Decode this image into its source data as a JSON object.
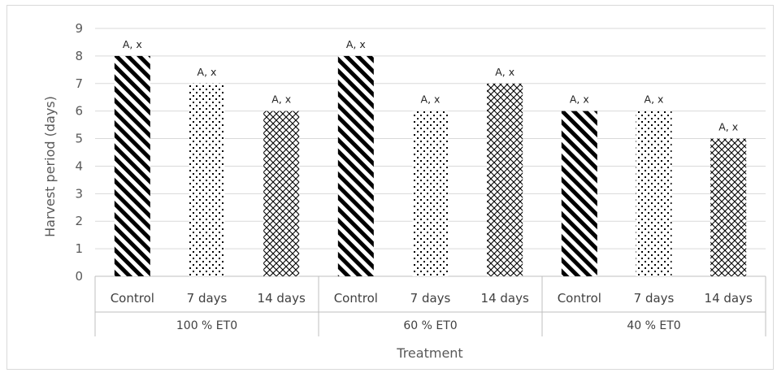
{
  "chart_data": {
    "type": "bar",
    "title": "",
    "xlabel": "Treatment",
    "ylabel": "Harvest period (days)",
    "ylim": [
      0,
      9
    ],
    "yticks": [
      0,
      1,
      2,
      3,
      4,
      5,
      6,
      7,
      8,
      9
    ],
    "grid": true,
    "groups": [
      {
        "label": "100 % ET0",
        "categories": [
          "Control",
          "7 days",
          "14 days"
        ],
        "values": [
          8,
          7,
          6
        ],
        "labels": [
          "A, x",
          "A, x",
          "A, x"
        ]
      },
      {
        "label": "60 % ET0",
        "categories": [
          "Control",
          "7 days",
          "14 days"
        ],
        "values": [
          8,
          6,
          7
        ],
        "labels": [
          "A, x",
          "A, x",
          "A, x"
        ]
      },
      {
        "label": "40 % ET0",
        "categories": [
          "Control",
          "7 days",
          "14 days"
        ],
        "values": [
          6,
          6,
          5
        ],
        "labels": [
          "A, x",
          "A, x",
          "A, x"
        ]
      }
    ],
    "bar_patterns": [
      "diagonal-stripes",
      "dots",
      "crosshatch"
    ],
    "colors": {
      "bar": "#000000",
      "grid": "#d9d9d9",
      "axis": "#bfbfbf"
    }
  }
}
